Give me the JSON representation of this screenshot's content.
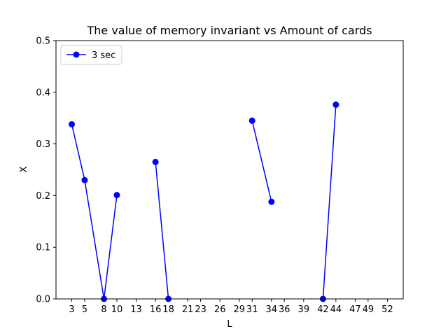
{
  "chart_data": {
    "type": "line",
    "title": "The value of memory invariant vs Amount of cards",
    "xlabel": "L",
    "ylabel": "X",
    "xlim": [
      0.55,
      54.45
    ],
    "ylim": [
      0,
      0.5
    ],
    "x_ticks": [
      3,
      5,
      8,
      10,
      13,
      16,
      18,
      21,
      23,
      26,
      29,
      31,
      34,
      36,
      39,
      42,
      44,
      47,
      49,
      52
    ],
    "y_ticks": [
      0.0,
      0.1,
      0.2,
      0.3,
      0.4,
      0.5
    ],
    "y_tick_labels": [
      "0.0",
      "0.1",
      "0.2",
      "0.3",
      "0.4",
      "0.5"
    ],
    "grid": false,
    "legend_position": "upper-left",
    "series": [
      {
        "name": "3 sec",
        "color": "#0000ff",
        "marker": "circle",
        "segments": [
          [
            [
              3,
              0.338
            ],
            [
              5,
              0.23
            ],
            [
              8,
              0.0
            ],
            [
              10,
              0.201
            ]
          ],
          [
            [
              16,
              0.265
            ],
            [
              18,
              0.0
            ]
          ],
          [
            [
              31,
              0.345
            ],
            [
              34,
              0.188
            ]
          ],
          [
            [
              42,
              0.0
            ],
            [
              44,
              0.376
            ]
          ]
        ]
      }
    ]
  }
}
